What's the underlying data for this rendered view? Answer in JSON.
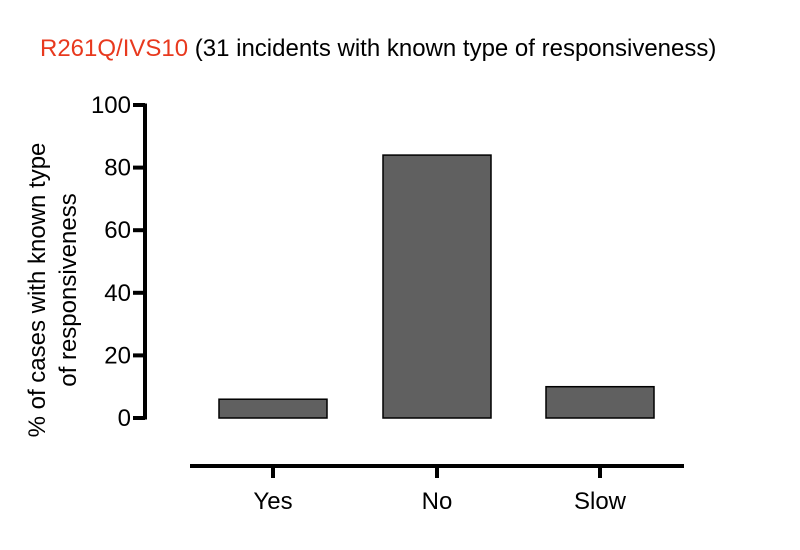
{
  "chart_data": {
    "type": "bar",
    "title_highlight": "R261Q/IVS10",
    "title_rest": " (31 incidents with known type of responsiveness)",
    "ylabel_line1": "% of cases with  known type",
    "ylabel_line2": "of responsiveness",
    "xlabel": "",
    "categories": [
      "Yes",
      "No",
      "Slow"
    ],
    "values": [
      6,
      84,
      10
    ],
    "ylim": [
      0,
      100
    ],
    "yticks": [
      0,
      20,
      40,
      60,
      80,
      100
    ],
    "grid": false,
    "colors": {
      "bar": "#606060",
      "title_highlight": "#e8391e",
      "axis": "#000000"
    }
  }
}
